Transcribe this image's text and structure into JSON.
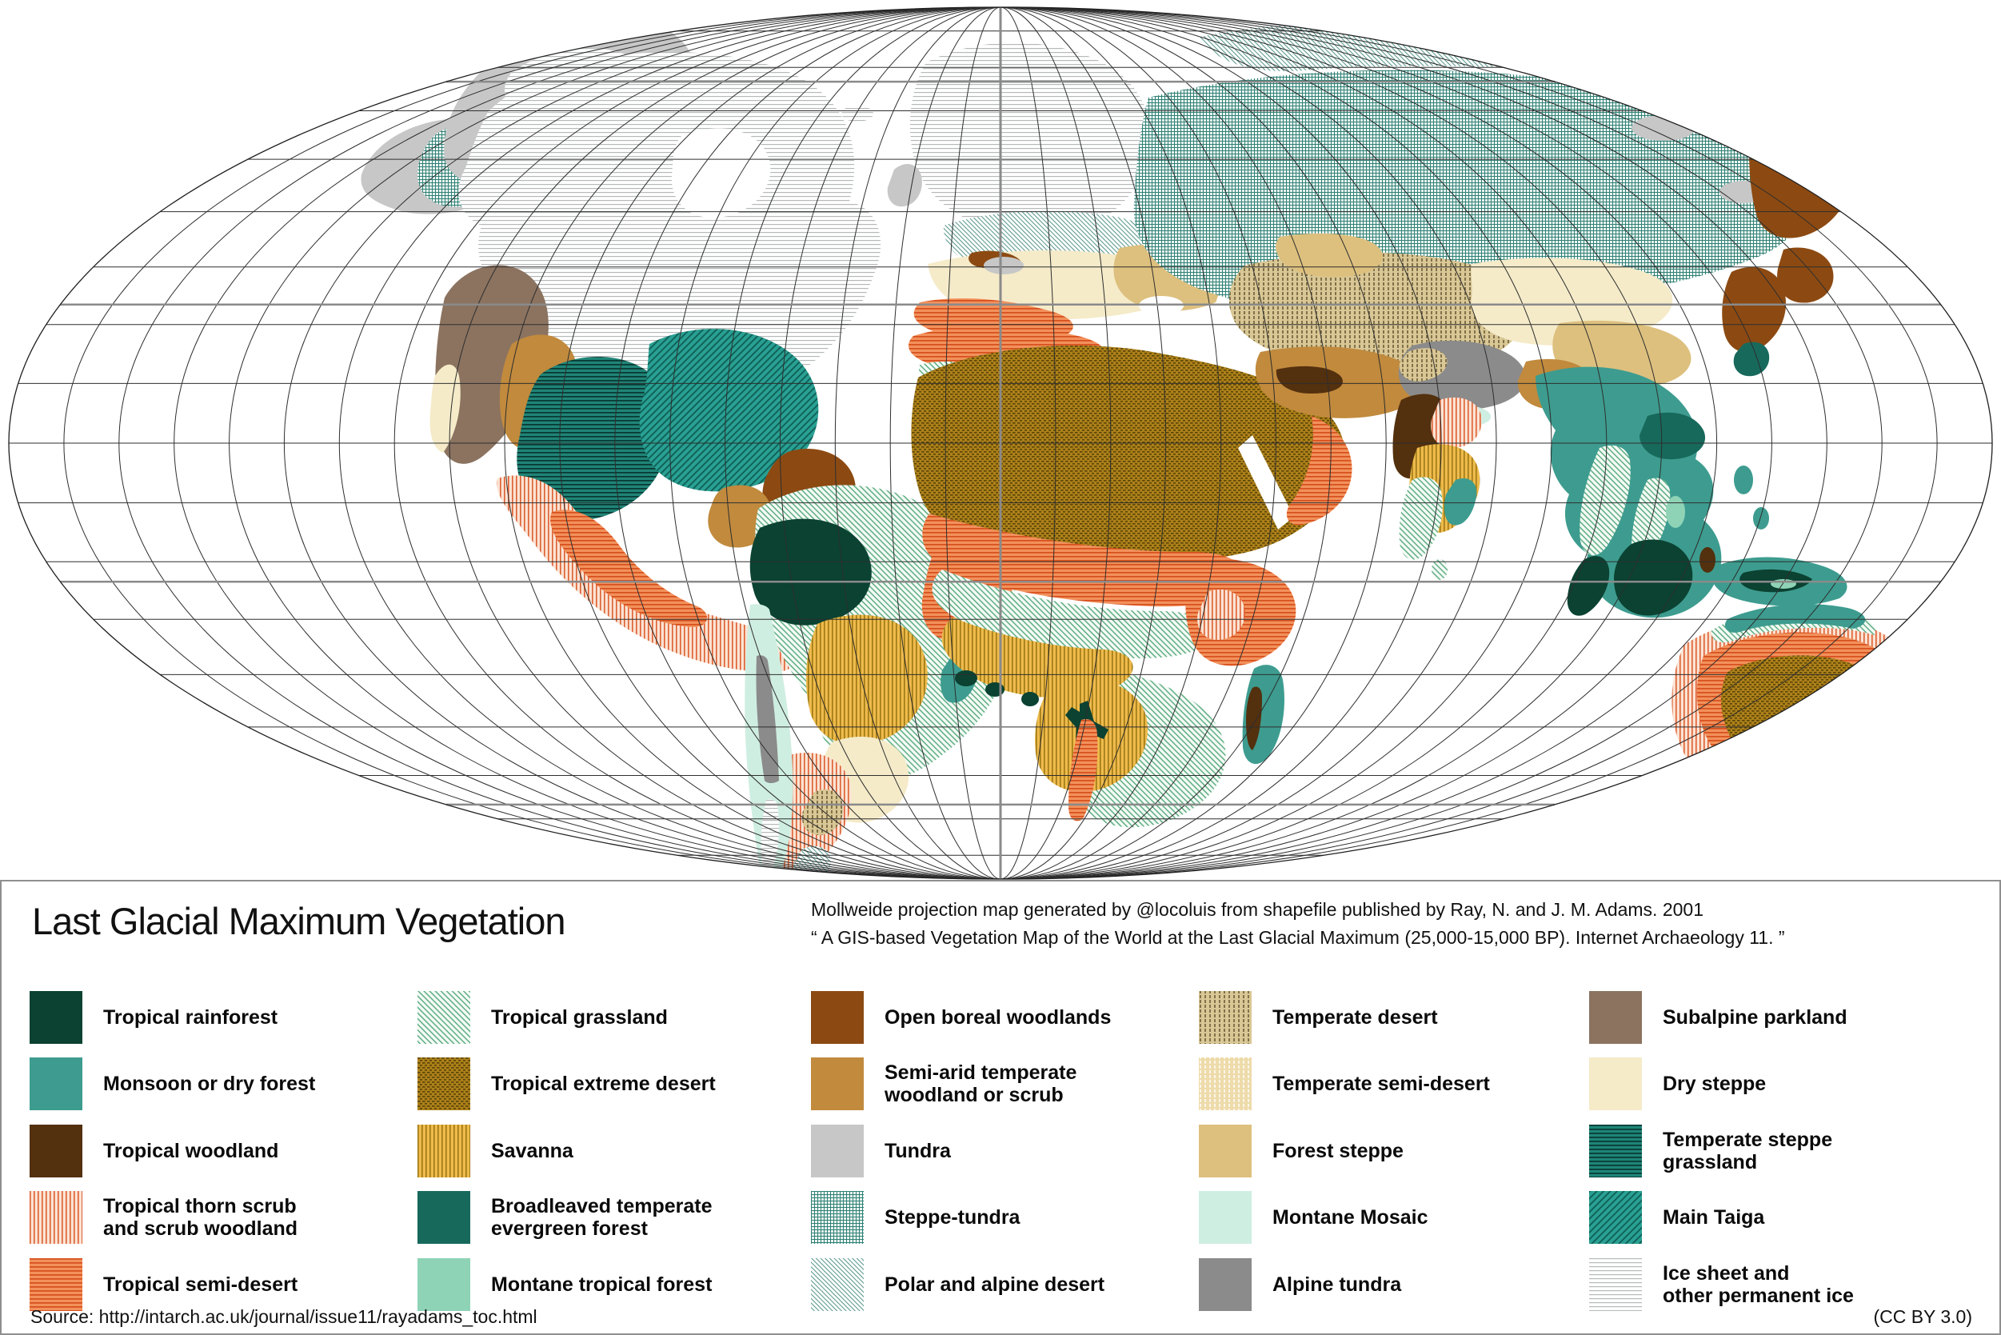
{
  "legend": {
    "title": "Last Glacial Maximum Vegetation",
    "columns": [
      [
        {
          "key": "tropical_rainforest",
          "label": "Tropical rainforest"
        },
        {
          "key": "monsoon_or_dry_forest",
          "label": "Monsoon or dry forest"
        },
        {
          "key": "tropical_woodland",
          "label": "Tropical woodland"
        },
        {
          "key": "tropical_thorn_scrub",
          "label": "Tropical thorn scrub\nand scrub woodland"
        },
        {
          "key": "tropical_semi_desert",
          "label": "Tropical semi-desert"
        }
      ],
      [
        {
          "key": "tropical_grassland",
          "label": "Tropical grassland"
        },
        {
          "key": "tropical_extreme_desert",
          "label": "Tropical extreme desert"
        },
        {
          "key": "savanna",
          "label": "Savanna"
        },
        {
          "key": "broadleaved_temperate_evergreen_forest",
          "label": "Broadleaved temperate\nevergreen forest"
        },
        {
          "key": "montane_tropical_forest",
          "label": "Montane tropical forest"
        }
      ],
      [
        {
          "key": "open_boreal_woodlands",
          "label": "Open boreal woodlands"
        },
        {
          "key": "semi_arid_temperate_woodland_or_scrub",
          "label": "Semi-arid temperate\nwoodland or scrub"
        },
        {
          "key": "tundra",
          "label": "Tundra"
        },
        {
          "key": "steppe_tundra",
          "label": "Steppe-tundra"
        },
        {
          "key": "polar_and_alpine_desert",
          "label": "Polar and alpine desert"
        }
      ],
      [
        {
          "key": "temperate_desert",
          "label": "Temperate desert"
        },
        {
          "key": "temperate_semi_desert",
          "label": "Temperate semi-desert"
        },
        {
          "key": "forest_steppe",
          "label": "Forest steppe"
        },
        {
          "key": "montane_mosaic",
          "label": "Montane Mosaic"
        },
        {
          "key": "alpine_tundra",
          "label": "Alpine tundra"
        }
      ],
      [
        {
          "key": "subalpine_parkland",
          "label": "Subalpine parkland"
        },
        {
          "key": "dry_steppe",
          "label": "Dry steppe"
        },
        {
          "key": "temperate_steppe_grassland",
          "label": "Temperate steppe\ngrassland"
        },
        {
          "key": "main_taiga",
          "label": "Main Taiga"
        },
        {
          "key": "ice_sheet",
          "label": "Ice sheet and\nother permanent ice"
        }
      ]
    ]
  },
  "vegetation": {
    "tropical_rainforest": {
      "type": "solid",
      "color": "#0b4232"
    },
    "monsoon_or_dry_forest": {
      "type": "solid",
      "color": "#3d9c8f"
    },
    "tropical_woodland": {
      "type": "solid",
      "color": "#53300e"
    },
    "tropical_thorn_scrub": {
      "type": "pattern",
      "style": "vlines",
      "bg": "#fbe3d3",
      "fg": "#dd5f32",
      "size": 5,
      "lw": 1.6
    },
    "tropical_semi_desert": {
      "type": "pattern",
      "style": "hlines",
      "bg": "#f2915c",
      "fg": "#d8521f",
      "size": 5,
      "lw": 1.8
    },
    "tropical_grassland": {
      "type": "pattern",
      "style": "diag2",
      "bg": "#f4faf6",
      "fg": "#5fae82",
      "size": 5,
      "lw": 1.5
    },
    "tropical_extreme_desert": {
      "type": "pattern",
      "style": "brick",
      "bg": "#ad811a",
      "fg": "#5e4708",
      "size": 6,
      "lw": 1.7
    },
    "savanna": {
      "type": "pattern",
      "style": "vlines",
      "bg": "#eebb4d",
      "fg": "#9f7812",
      "size": 5,
      "lw": 1.6
    },
    "broadleaved_temperate_evergreen_forest": {
      "type": "solid",
      "color": "#17695c"
    },
    "montane_tropical_forest": {
      "type": "solid",
      "color": "#8fd3b7"
    },
    "open_boreal_woodlands": {
      "type": "solid",
      "color": "#8c4a12"
    },
    "semi_arid_temperate_woodland_or_scrub": {
      "type": "solid",
      "color": "#c18a3d"
    },
    "tundra": {
      "type": "solid",
      "color": "#c7c7c7"
    },
    "steppe_tundra": {
      "type": "pattern",
      "style": "grid",
      "bg": "#eef6f3",
      "fg": "#2e8075",
      "size": 4,
      "lw": 1
    },
    "polar_and_alpine_desert": {
      "type": "pattern",
      "style": "diag2",
      "bg": "#fcfefd",
      "fg": "#56948a",
      "size": 4,
      "lw": 1
    },
    "temperate_desert": {
      "type": "pattern",
      "style": "vdash",
      "bg": "#d9c795",
      "fg": "#5c4d2b",
      "size": 6,
      "lw": 1.4
    },
    "temperate_semi_desert": {
      "type": "pattern",
      "style": "vdots",
      "bg": "#eedbaa",
      "fg": "#ffffff",
      "size": 6,
      "lw": 1.8
    },
    "forest_steppe": {
      "type": "solid",
      "color": "#ddc07e"
    },
    "montane_mosaic": {
      "type": "solid",
      "color": "#cfeee2"
    },
    "alpine_tundra": {
      "type": "solid",
      "color": "#8b8b8b"
    },
    "subalpine_parkland": {
      "type": "solid",
      "color": "#8b7360"
    },
    "dry_steppe": {
      "type": "solid",
      "color": "#f5ebc9"
    },
    "temperate_steppe_grassland": {
      "type": "pattern",
      "style": "hlines",
      "bg": "#1f8578",
      "fg": "#0a3c35",
      "size": 5,
      "lw": 1.8
    },
    "main_taiga": {
      "type": "pattern",
      "style": "diag",
      "bg": "#29a093",
      "fg": "#0e5e54",
      "size": 6,
      "lw": 1.8
    },
    "ice_sheet": {
      "type": "pattern",
      "style": "hlines",
      "bg": "#ffffff",
      "fg": "#b6b9b9",
      "size": 5,
      "lw": 1.2
    }
  },
  "attribution": {
    "line1": "Mollweide projection map generated by @locoluis from shapefile published by Ray, N. and J. M. Adams. 2001",
    "line2": "“ A GIS-based Vegetation Map of the World at the Last Glacial Maximum (25,000-15,000 BP). Internet Archaeology 11. ”"
  },
  "footer": {
    "source": "Source: http://intarch.ac.uk/journal/issue11/rayadams_toc.html",
    "license": "(CC BY 3.0)"
  },
  "map": {
    "graticule_step_degrees": 10,
    "highlight_parallels_degrees": [
      23.437,
      66.563
    ],
    "graticule_color": "#2e2e2e",
    "highlight_color": "#8a8a8a",
    "ocean_color": "#ffffff"
  }
}
